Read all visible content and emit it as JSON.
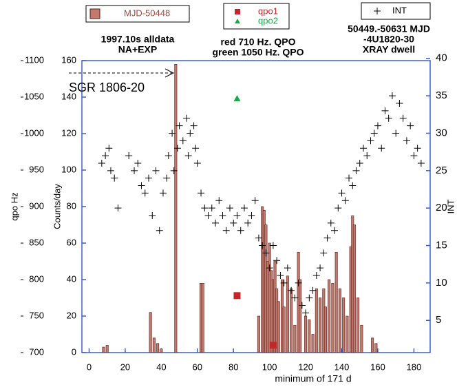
{
  "chart_data": {
    "type": "bar",
    "annotations": [
      "1997.10s alldata",
      "NA+EXP",
      "red 710 Hz. QPO",
      "green 1050 Hz. QPO",
      "50449.-50631 MJD",
      "-4U1820-30",
      "XRAY dwell",
      "SGR 1806-20",
      "minimum  of 171 d"
    ],
    "xlim": [
      -4,
      189
    ],
    "xticks": [
      0,
      20,
      40,
      60,
      80,
      100,
      120,
      140,
      160,
      180
    ],
    "ylim": [
      0,
      160
    ],
    "yticks": [
      0,
      20,
      40,
      60,
      80,
      100,
      120,
      140,
      160
    ],
    "ylabel": "Counts/day",
    "qpo_ylim": [
      700,
      1100
    ],
    "qpo_yticks": [
      700,
      750,
      800,
      850,
      900,
      950,
      1000,
      1050,
      1100
    ],
    "qpo_label": "qpo Hz",
    "y2lim": [
      0.7,
      39.7
    ],
    "y2ticks": [
      5,
      10,
      15,
      20,
      25,
      30,
      35,
      40
    ],
    "y2label": "INT",
    "series": [
      {
        "name": "MJD-50448",
        "color": "#a3483e",
        "marker": "bar",
        "x": [
          8,
          10,
          34,
          36,
          38,
          40,
          48,
          62,
          63,
          94,
          96,
          97,
          98,
          99,
          100,
          101,
          102,
          103,
          104,
          105,
          107,
          108,
          110,
          112,
          114,
          116,
          117,
          120,
          122,
          124,
          126,
          128,
          130,
          131,
          133,
          135,
          137,
          139,
          141,
          143,
          145,
          146,
          147,
          149,
          151,
          157,
          159
        ],
        "values": [
          3,
          4,
          22,
          8,
          5,
          2,
          158,
          38,
          38,
          20,
          80,
          78,
          70,
          50,
          60,
          45,
          40,
          50,
          35,
          28,
          40,
          25,
          42,
          35,
          15,
          55,
          40,
          20,
          18,
          10,
          35,
          30,
          35,
          25,
          40,
          38,
          55,
          35,
          30,
          20,
          58,
          75,
          70,
          30,
          15,
          8,
          5
        ]
      },
      {
        "name": "qpo1",
        "color": "#c0282a",
        "marker": "square",
        "axis": "qpo",
        "x": [
          82,
          102
        ],
        "values": [
          778,
          710
        ]
      },
      {
        "name": "qpo2",
        "color": "#1aa84a",
        "marker": "triangle",
        "axis": "qpo",
        "x": [
          82
        ],
        "values": [
          1048
        ]
      },
      {
        "name": "INT",
        "color": "#000000",
        "marker": "plus",
        "axis": "y2",
        "x": [
          7,
          9,
          11,
          12,
          14,
          16,
          22,
          25,
          27,
          29,
          31,
          33,
          35,
          37,
          39,
          41,
          43,
          44,
          46,
          47,
          49,
          50,
          52,
          54,
          55,
          56,
          58,
          59,
          60,
          62,
          64,
          66,
          68,
          70,
          72,
          74,
          76,
          78,
          80,
          82,
          84,
          86,
          88,
          90,
          92,
          94,
          96,
          98,
          100,
          102,
          104,
          106,
          108,
          110,
          112,
          114,
          116,
          118,
          120,
          122,
          124,
          126,
          128,
          130,
          132,
          134,
          136,
          138,
          140,
          142,
          144,
          146,
          148,
          150,
          152,
          154,
          156,
          158,
          160,
          162,
          164,
          166,
          168,
          170,
          172,
          174,
          176,
          178,
          180,
          182,
          184
        ],
        "values": [
          26,
          27,
          28,
          25,
          24,
          20,
          27,
          25,
          26,
          23,
          22,
          24,
          19,
          25,
          17,
          22,
          24,
          27,
          30,
          25,
          28,
          31,
          29,
          32,
          27,
          30,
          31,
          28,
          26,
          22,
          20,
          19,
          20,
          18,
          21,
          19,
          17,
          20,
          18,
          19,
          17,
          20,
          18,
          19,
          21,
          16,
          15,
          14,
          12,
          15,
          13,
          11,
          10,
          12,
          9,
          8,
          10,
          7,
          6,
          8,
          9,
          11,
          12,
          14,
          16,
          18,
          17,
          20,
          22,
          21,
          24,
          23,
          25,
          26,
          28,
          27,
          29,
          30,
          31,
          28,
          33,
          32,
          35,
          30,
          34,
          32,
          29,
          31,
          27,
          28,
          26
        ]
      }
    ]
  }
}
